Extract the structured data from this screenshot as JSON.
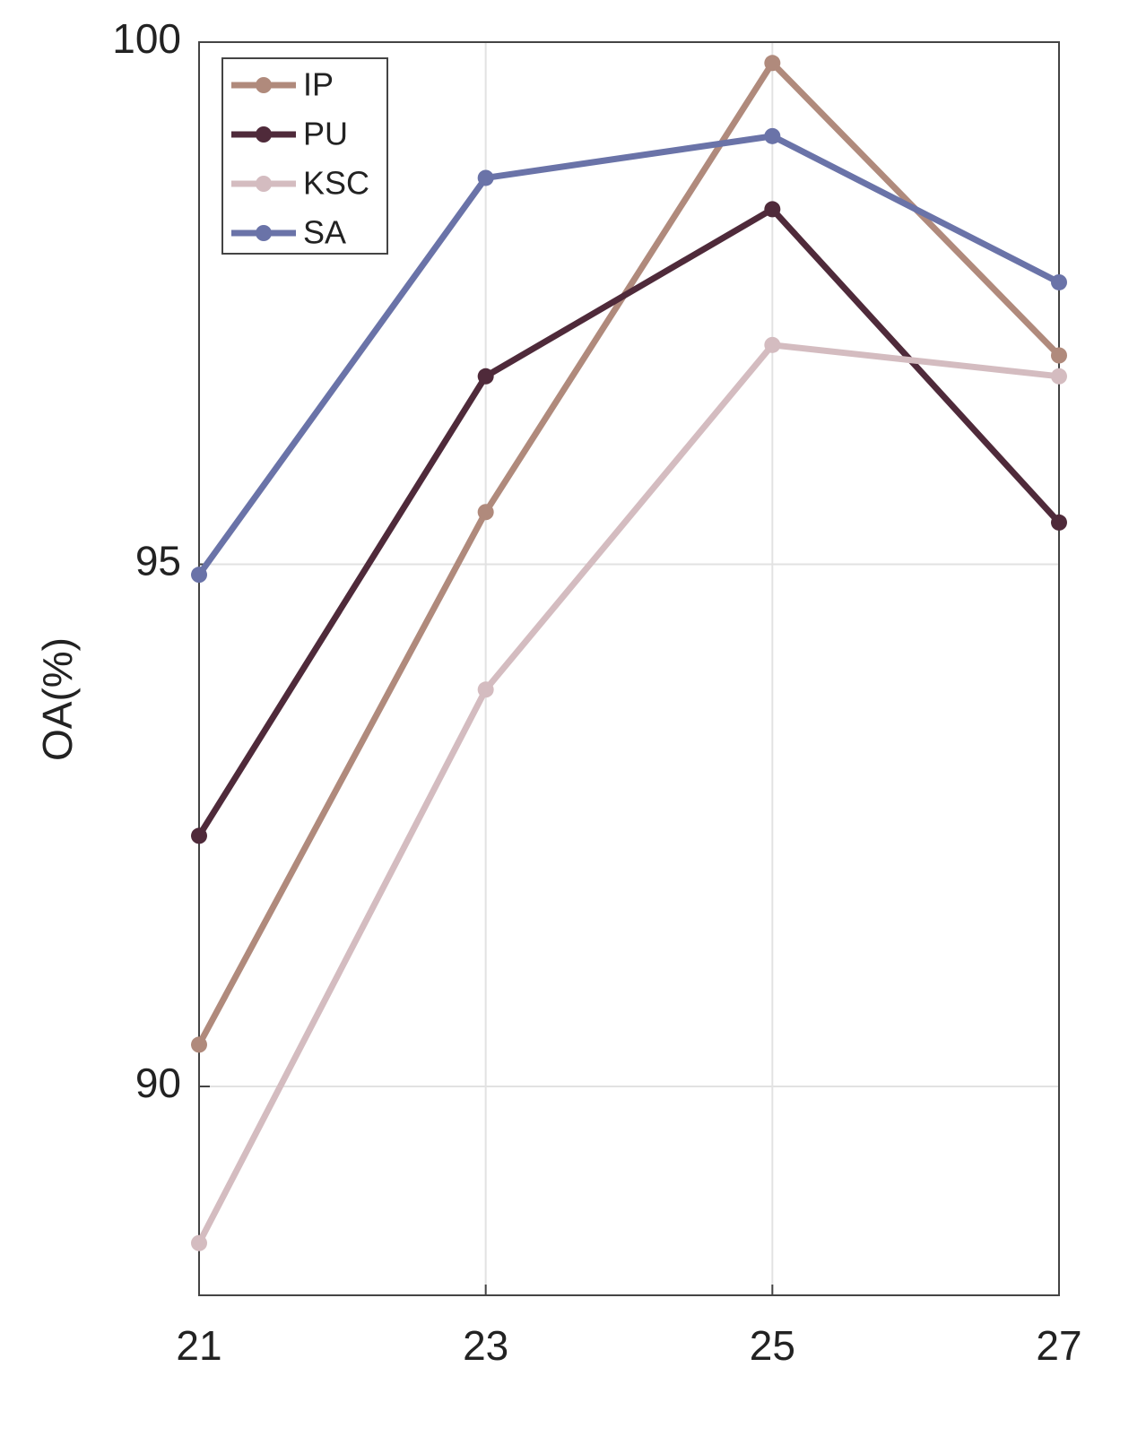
{
  "chart_data": {
    "type": "line",
    "x": [
      21,
      23,
      25,
      27
    ],
    "y_label": "OA(%)",
    "series": [
      {
        "name": "IP",
        "color": "#b08a7c",
        "values": [
          90.4,
          95.5,
          99.8,
          97.0
        ]
      },
      {
        "name": "PU",
        "color": "#4f2a3a",
        "values": [
          92.4,
          96.8,
          98.4,
          95.4
        ]
      },
      {
        "name": "KSC",
        "color": "#d4bcc0",
        "values": [
          88.5,
          93.8,
          97.1,
          96.8
        ]
      },
      {
        "name": "SA",
        "color": "#6a73a8",
        "values": [
          94.9,
          98.7,
          99.1,
          97.7
        ]
      }
    ],
    "xlim": [
      21,
      27
    ],
    "xticks": [
      21,
      23,
      25,
      27
    ],
    "ylim": [
      88,
      100
    ],
    "yticks": [
      90,
      95,
      100
    ],
    "grid": true,
    "legend": "upper-left"
  }
}
